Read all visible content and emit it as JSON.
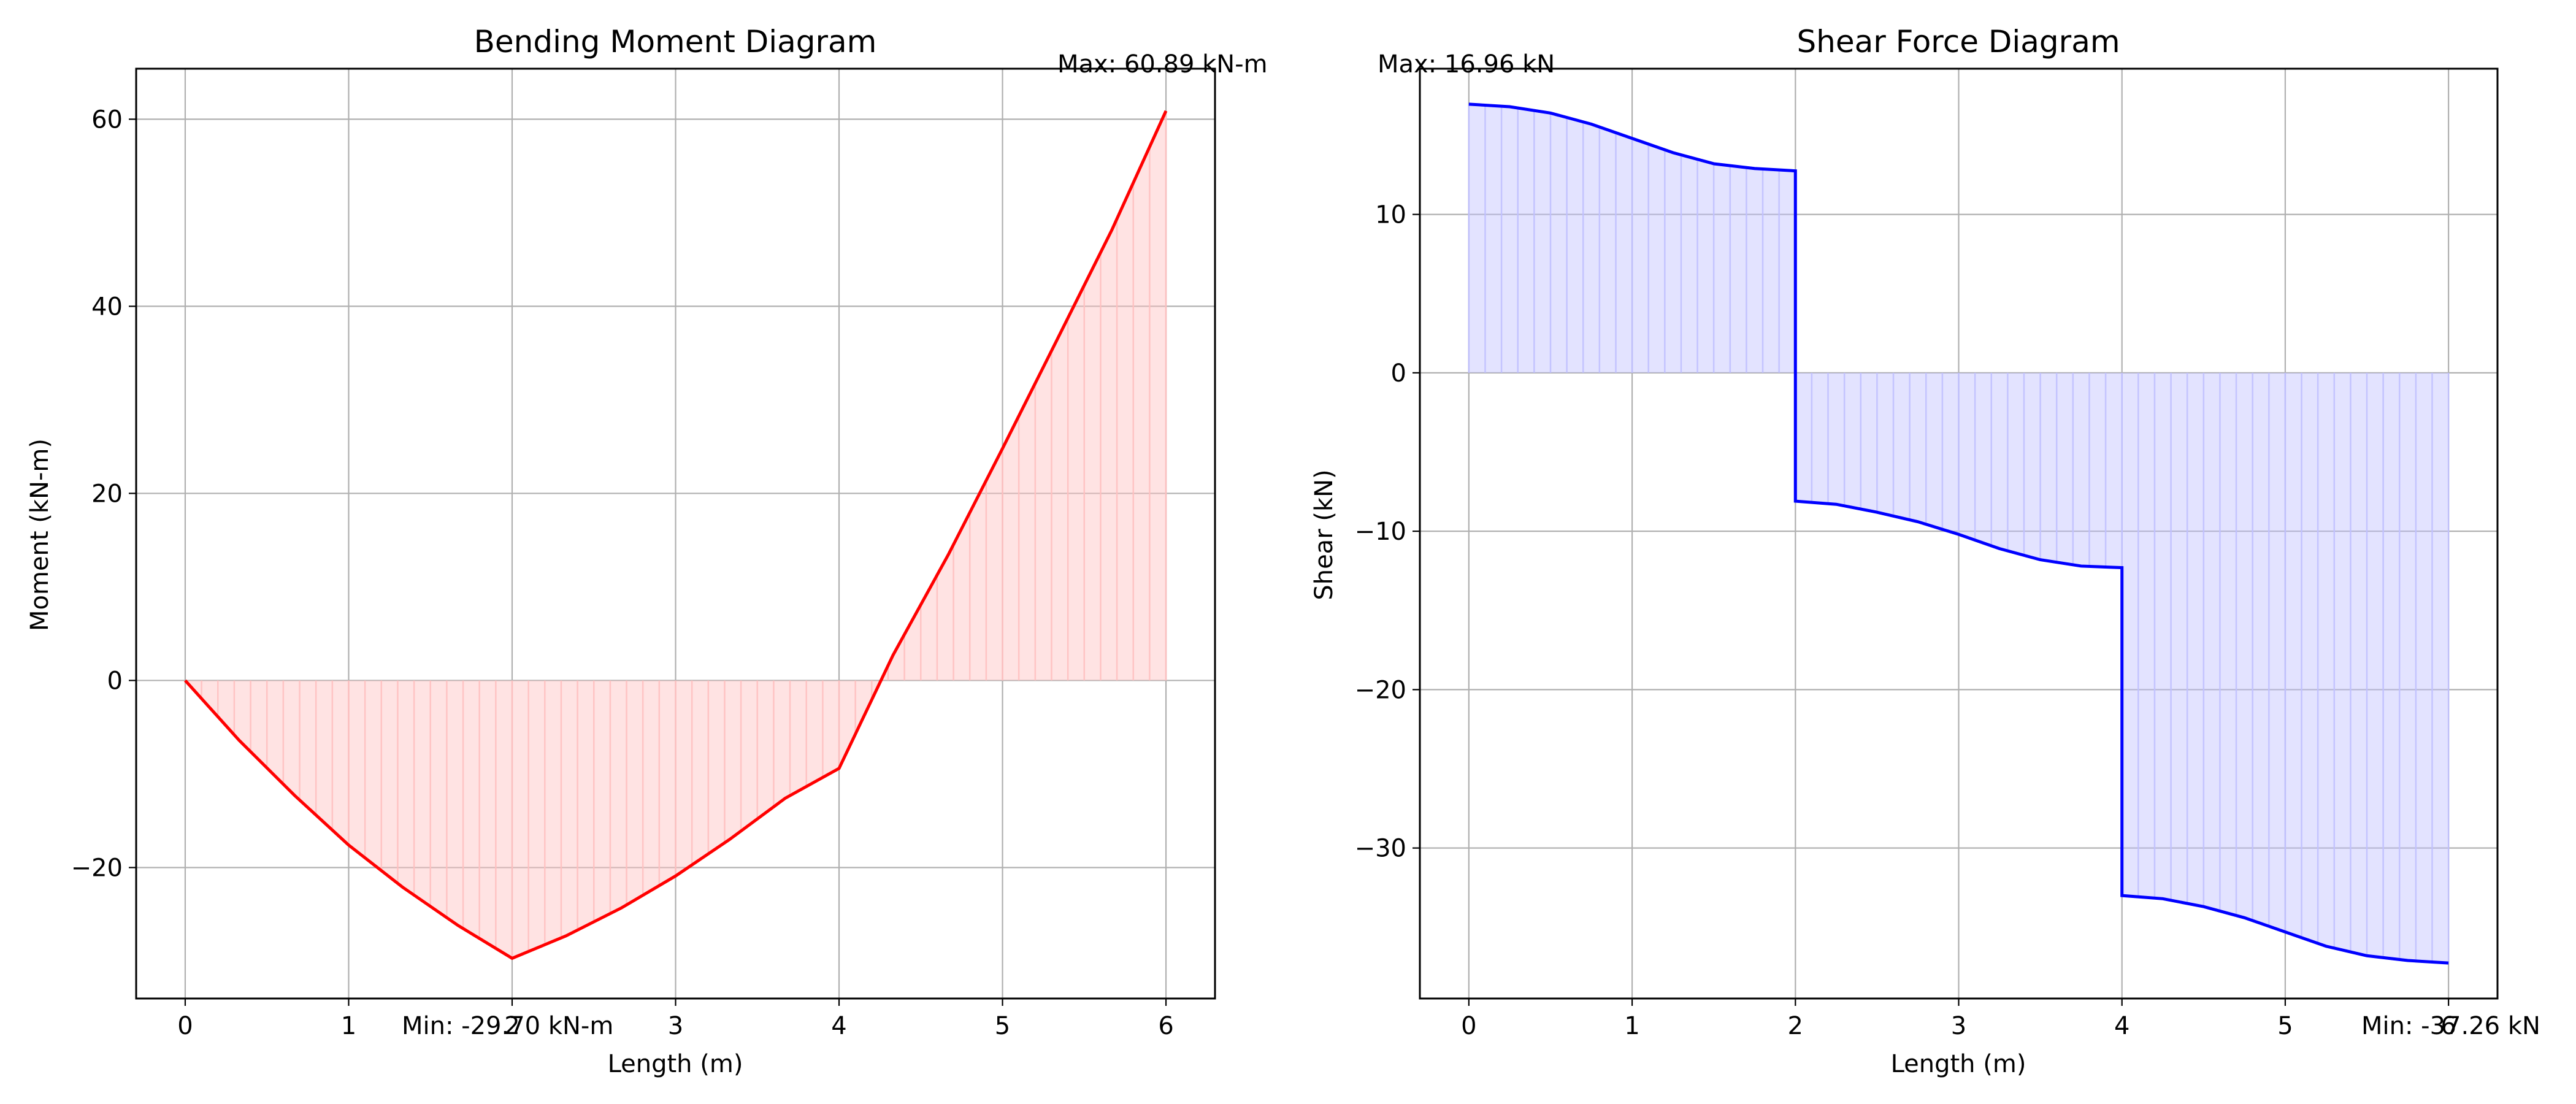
{
  "chart_data": [
    {
      "type": "area",
      "title": "Bending Moment Diagram",
      "xlabel": "Length (m)",
      "ylabel": "Moment (kN-m)",
      "xlim": [
        -0.3,
        6.3
      ],
      "ylim": [
        -34.0,
        65.4
      ],
      "xticks": [
        0,
        1,
        2,
        3,
        4,
        5,
        6
      ],
      "xtick_labels": [
        "0",
        "1",
        "2",
        "3",
        "4",
        "5",
        "6"
      ],
      "yticks": [
        -20,
        0,
        20,
        40,
        60
      ],
      "ytick_labels": [
        "−20",
        "0",
        "20",
        "40",
        "60"
      ],
      "grid": true,
      "fill_color": "#ffc0c0",
      "line_color": "#ff0000",
      "series": [
        {
          "x": [
            0,
            0.33,
            0.67,
            1.0,
            1.33,
            1.67,
            2.0,
            2.33,
            2.67,
            3.0,
            3.33,
            3.67,
            4.0,
            4.33,
            4.67,
            5.0,
            5.33,
            5.67,
            6.0
          ],
          "values": [
            0,
            -6.4,
            -12.3,
            -17.6,
            -22.1,
            -26.2,
            -29.7,
            -27.3,
            -24.3,
            -20.9,
            -17.0,
            -12.6,
            -9.4,
            2.7,
            13.5,
            24.8,
            36.3,
            48.2,
            60.89
          ]
        }
      ],
      "annotations": {
        "max": "Max: 60.89 kN-m",
        "min": "Min: -29.70 kN-m"
      }
    },
    {
      "type": "area",
      "title": "Shear Force Diagram",
      "xlabel": "Length (m)",
      "ylabel": "Shear (kN)",
      "xlim": [
        -0.3,
        6.3
      ],
      "ylim": [
        -39.5,
        19.2
      ],
      "xticks": [
        0,
        1,
        2,
        3,
        4,
        5,
        6
      ],
      "xtick_labels": [
        "0",
        "1",
        "2",
        "3",
        "4",
        "5",
        "6"
      ],
      "yticks": [
        -30,
        -20,
        -10,
        0,
        10
      ],
      "ytick_labels": [
        "−30",
        "−20",
        "−10",
        "0",
        "10"
      ],
      "grid": true,
      "fill_color": "#c0c0ff",
      "line_color": "#0000ff",
      "series": [
        {
          "x": [
            0,
            0.25,
            0.5,
            0.75,
            1.0,
            1.25,
            1.5,
            1.75,
            2.0,
            2.0,
            2.25,
            2.5,
            2.75,
            3.0,
            3.25,
            3.5,
            3.75,
            4.0,
            4.0,
            4.25,
            4.5,
            4.75,
            5.0,
            5.25,
            5.5,
            5.75,
            6.0
          ],
          "values": [
            16.96,
            16.8,
            16.4,
            15.7,
            14.8,
            13.9,
            13.2,
            12.9,
            12.75,
            -8.1,
            -8.3,
            -8.8,
            -9.4,
            -10.2,
            -11.1,
            -11.8,
            -12.2,
            -12.3,
            -33.0,
            -33.2,
            -33.7,
            -34.4,
            -35.3,
            -36.2,
            -36.8,
            -37.1,
            -37.26
          ]
        }
      ],
      "annotations": {
        "max": "Max: 16.96 kN",
        "min": "Min: -37.26 kN"
      }
    }
  ]
}
